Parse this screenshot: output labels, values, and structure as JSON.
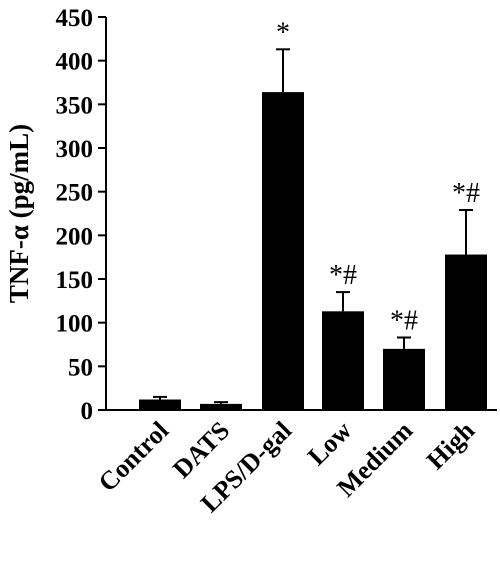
{
  "chart_data": {
    "type": "bar",
    "ylabel": "TNF-α (pg/mL)",
    "xlabel": "",
    "ylim": [
      0,
      450
    ],
    "yticks": [
      0,
      50,
      100,
      150,
      200,
      250,
      300,
      350,
      400,
      450
    ],
    "ytick_labels": [
      "0",
      "50",
      "100",
      "150",
      "200",
      "250",
      "300",
      "350",
      "400",
      "450"
    ],
    "categories": [
      "Control",
      "DATS",
      "LPS/D-gal",
      "Low",
      "Medium",
      "High"
    ],
    "values": [
      12,
      7,
      364,
      113,
      70,
      178
    ],
    "errors": [
      3,
      2,
      49,
      22,
      13,
      51
    ],
    "annotations": [
      "",
      "",
      "*",
      "*#",
      "*#",
      "*#"
    ],
    "grid": false,
    "bar_color": "#000000"
  }
}
